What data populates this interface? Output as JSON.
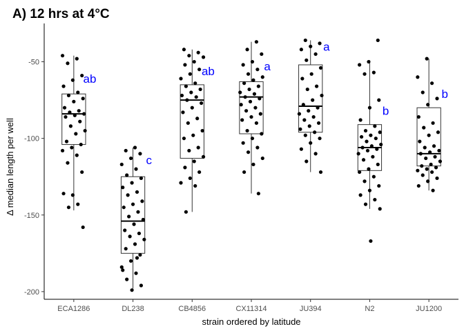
{
  "chart_data": {
    "type": "box",
    "title": "A) 12 hrs at 4°C",
    "xlabel": "strain ordered by latitude",
    "ylabel": "Δ median length per well",
    "ylim": [
      -205,
      -25
    ],
    "yticks": [
      -50,
      -100,
      -150,
      -200
    ],
    "grid": false,
    "legend": "none",
    "colors": {
      "points": "#000000",
      "box": "#333333",
      "letters": "#0000ff"
    },
    "categories": [
      "ECA1286",
      "DL238",
      "CB4856",
      "CX11314",
      "JU394",
      "N2",
      "JU1200"
    ],
    "boxes": [
      {
        "category": "ECA1286",
        "min": -147,
        "q1": -104,
        "median": -84,
        "q3": -71,
        "max": -46,
        "letter": "ab",
        "letter_y": -61
      },
      {
        "category": "DL238",
        "min": -198,
        "q1": -175,
        "median": -154,
        "q3": -125,
        "max": -106,
        "letter": "c",
        "letter_y": -114
      },
      {
        "category": "CB4856",
        "min": -148,
        "q1": -113,
        "median": -75,
        "q3": -65,
        "max": -42,
        "letter": "ab",
        "letter_y": -56
      },
      {
        "category": "CX11314",
        "min": -136,
        "q1": -97,
        "median": -73,
        "q3": -63,
        "max": -37,
        "letter": "a",
        "letter_y": -53
      },
      {
        "category": "JU394",
        "min": -122,
        "q1": -96,
        "median": -79,
        "q3": -52,
        "max": -36,
        "letter": "a",
        "letter_y": -40
      },
      {
        "category": "N2",
        "min": -146,
        "q1": -121,
        "median": -106,
        "q3": -91,
        "max": -49,
        "letter": "b",
        "letter_y": -82
      },
      {
        "category": "JU1200",
        "min": -134,
        "q1": -118,
        "median": -110,
        "q3": -80,
        "max": -48,
        "letter": "b",
        "letter_y": -71
      }
    ],
    "points": [
      {
        "category": "ECA1286",
        "values": [
          -46,
          -48,
          -51,
          -59,
          -62,
          -66,
          -70,
          -72,
          -74,
          -76,
          -80,
          -82,
          -83,
          -84,
          -85,
          -86,
          -89,
          -92,
          -95,
          -97,
          -102,
          -104,
          -106,
          -108,
          -111,
          -116,
          -122,
          -137,
          -136,
          -143,
          -145,
          -158
        ]
      },
      {
        "category": "DL238",
        "values": [
          -106,
          -108,
          -110,
          -113,
          -117,
          -120,
          -124,
          -126,
          -129,
          -132,
          -135,
          -137,
          -141,
          -143,
          -145,
          -148,
          -151,
          -153,
          -156,
          -160,
          -162,
          -164,
          -166,
          -169,
          -172,
          -176,
          -180,
          -184,
          -188,
          -192,
          -196,
          -199,
          -186,
          -178
        ]
      },
      {
        "category": "CB4856",
        "values": [
          -42,
          -44,
          -46,
          -47,
          -50,
          -52,
          -55,
          -58,
          -61,
          -64,
          -66,
          -68,
          -70,
          -72,
          -73,
          -75,
          -77,
          -80,
          -83,
          -87,
          -90,
          -95,
          -98,
          -100,
          -106,
          -108,
          -112,
          -115,
          -119,
          -122,
          -126,
          -129,
          -131,
          -148
        ]
      },
      {
        "category": "CX11314",
        "values": [
          -37,
          -42,
          -45,
          -50,
          -52,
          -55,
          -58,
          -60,
          -62,
          -64,
          -66,
          -68,
          -70,
          -71,
          -73,
          -74,
          -76,
          -78,
          -80,
          -82,
          -84,
          -86,
          -88,
          -90,
          -95,
          -97,
          -100,
          -103,
          -106,
          -109,
          -113,
          -117,
          -122,
          -136
        ]
      },
      {
        "category": "JU394",
        "values": [
          -36,
          -38,
          -40,
          -42,
          -45,
          -49,
          -54,
          -58,
          -61,
          -66,
          -68,
          -72,
          -75,
          -78,
          -80,
          -82,
          -84,
          -86,
          -88,
          -90,
          -92,
          -94,
          -96,
          -98,
          -100,
          -103,
          -107,
          -110,
          -115,
          -122
        ]
      },
      {
        "category": "N2",
        "values": [
          -36,
          -50,
          -52,
          -57,
          -58,
          -75,
          -80,
          -88,
          -92,
          -95,
          -96,
          -98,
          -99,
          -100,
          -102,
          -104,
          -105,
          -106,
          -107,
          -108,
          -110,
          -112,
          -114,
          -117,
          -120,
          -122,
          -125,
          -128,
          -131,
          -134,
          -137,
          -140,
          -143,
          -146,
          -167
        ]
      },
      {
        "category": "JU1200",
        "values": [
          -48,
          -60,
          -64,
          -70,
          -74,
          -78,
          -86,
          -90,
          -93,
          -96,
          -98,
          -102,
          -105,
          -106,
          -108,
          -109,
          -110,
          -112,
          -113,
          -115,
          -117,
          -118,
          -119,
          -120,
          -121,
          -122,
          -124,
          -126,
          -128,
          -131,
          -134
        ]
      }
    ]
  }
}
